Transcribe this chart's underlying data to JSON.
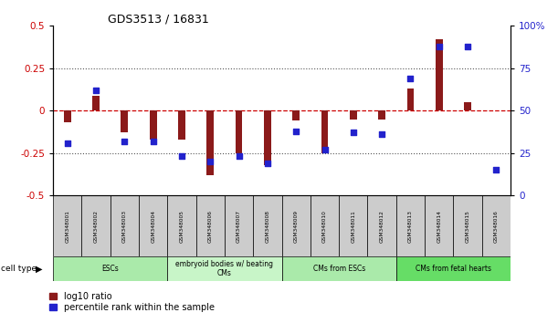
{
  "title": "GDS3513 / 16831",
  "samples": [
    "GSM348001",
    "GSM348002",
    "GSM348003",
    "GSM348004",
    "GSM348005",
    "GSM348006",
    "GSM348007",
    "GSM348008",
    "GSM348009",
    "GSM348010",
    "GSM348011",
    "GSM348012",
    "GSM348013",
    "GSM348014",
    "GSM348015",
    "GSM348016"
  ],
  "log10_ratio": [
    -0.07,
    0.09,
    -0.13,
    -0.17,
    -0.17,
    -0.38,
    -0.25,
    -0.32,
    -0.06,
    -0.25,
    -0.05,
    -0.05,
    0.13,
    0.42,
    0.05,
    0.0
  ],
  "percentile_rank": [
    31,
    62,
    32,
    32,
    23,
    20,
    23,
    19,
    38,
    27,
    37,
    36,
    69,
    88,
    88,
    15
  ],
  "cell_types": [
    {
      "label": "ESCs",
      "start": 0,
      "end": 4,
      "color": "#aaeaaa"
    },
    {
      "label": "embryoid bodies w/ beating\nCMs",
      "start": 4,
      "end": 8,
      "color": "#c8f5c8"
    },
    {
      "label": "CMs from ESCs",
      "start": 8,
      "end": 12,
      "color": "#aaeaaa"
    },
    {
      "label": "CMs from fetal hearts",
      "start": 12,
      "end": 16,
      "color": "#66dd66"
    }
  ],
  "ylim_left": [
    -0.5,
    0.5
  ],
  "ylim_right": [
    0,
    100
  ],
  "yticks_left": [
    -0.5,
    -0.25,
    0,
    0.25,
    0.5
  ],
  "yticks_right": [
    0,
    25,
    50,
    75,
    100
  ],
  "bar_color": "#8B1A1A",
  "dot_color": "#2222CC",
  "hline_color": "#CC0000",
  "grid_color": "#555555",
  "bg_plot": "#ffffff",
  "bg_sample": "#cccccc"
}
